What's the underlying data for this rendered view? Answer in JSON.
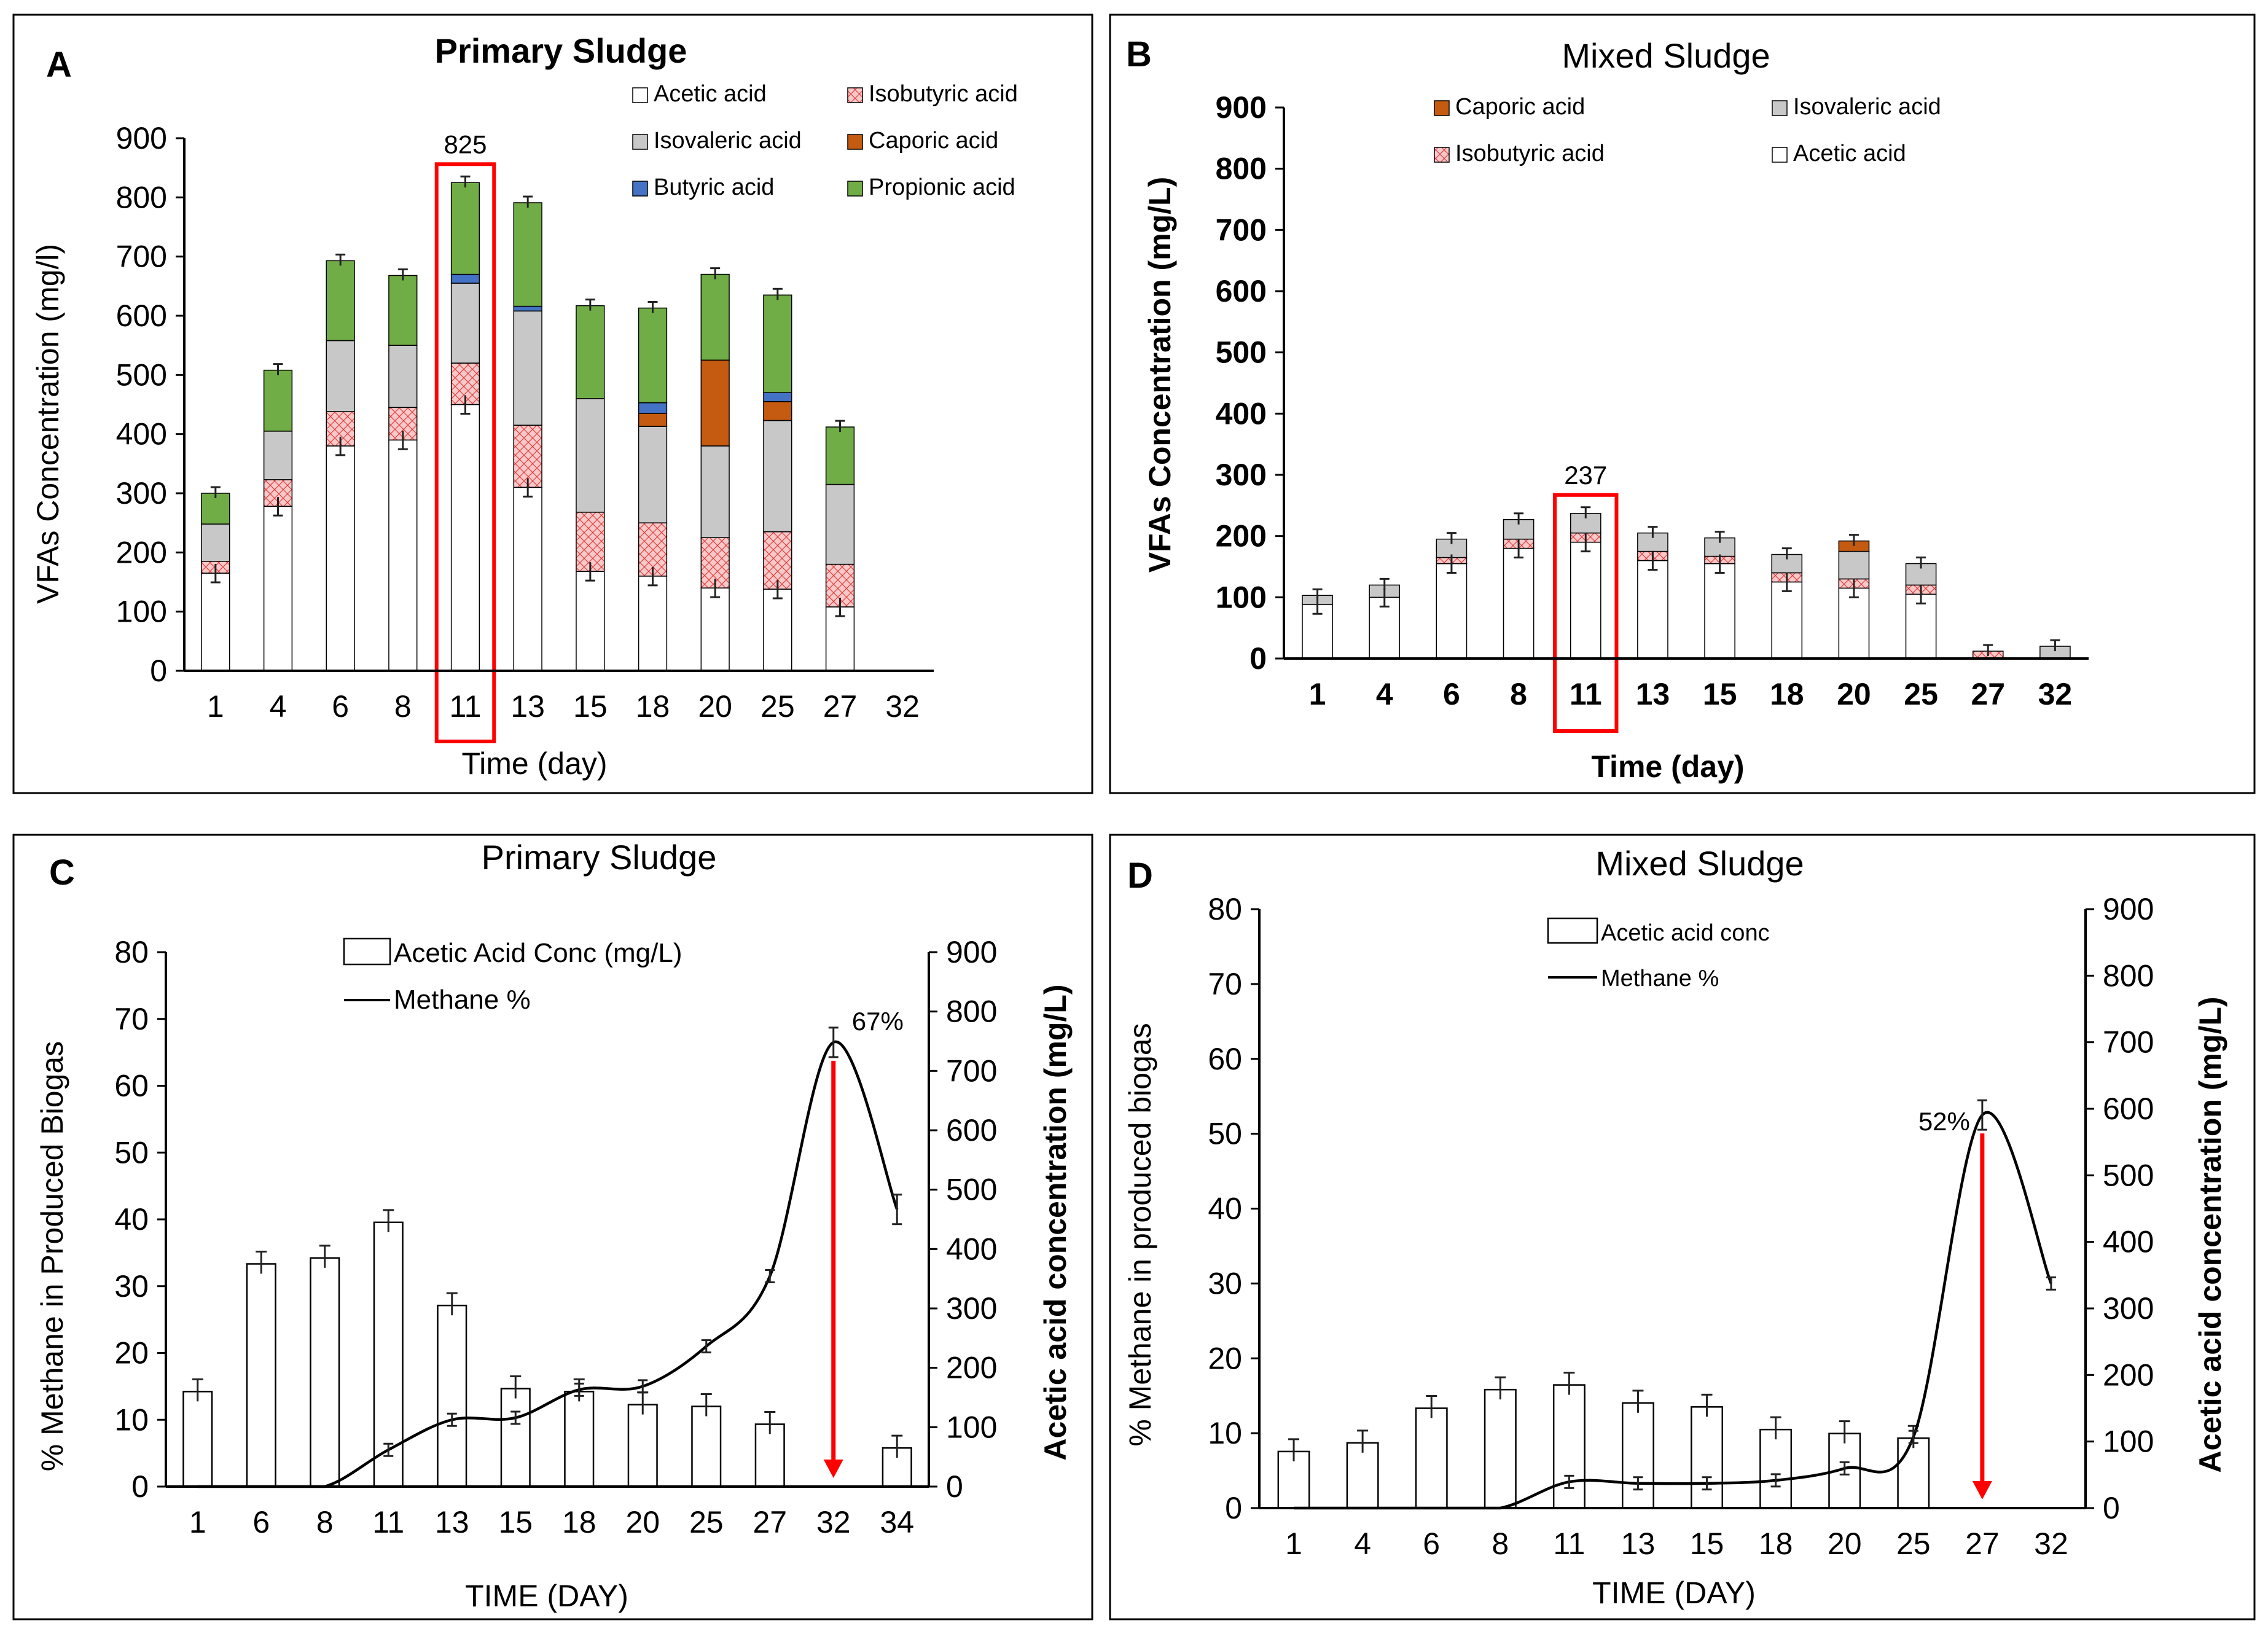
{
  "colors": {
    "acetic": "#ffffff",
    "isobutyric": "#f9c9c9",
    "isovaleric": "#c8c8c8",
    "caporic": "#c55a11",
    "butyric": "#4472c4",
    "propionic": "#70ad47",
    "highlight": "#ff0000",
    "line": "#000000"
  },
  "chart_data": [
    {
      "panel": "A",
      "type": "bar",
      "stacked": true,
      "title": "Primary Sludge",
      "xlabel": "Time (day)",
      "ylabel": "VFAs Concentration (mg/l)",
      "ylim": [
        0,
        900
      ],
      "yticks": [
        "0",
        "100",
        "200",
        "300",
        "400",
        "500",
        "600",
        "700",
        "800",
        "900"
      ],
      "categories": [
        "1",
        "4",
        "6",
        "8",
        "11",
        "13",
        "15",
        "18",
        "20",
        "25",
        "27",
        "32"
      ],
      "series": [
        {
          "name": "Acetic acid",
          "key": "acetic",
          "values": [
            165,
            278,
            380,
            390,
            450,
            310,
            168,
            160,
            140,
            138,
            108,
            0
          ]
        },
        {
          "name": "Isobutyric acid",
          "key": "isobutyric",
          "values": [
            20,
            45,
            58,
            55,
            70,
            105,
            100,
            90,
            85,
            97,
            72,
            0
          ]
        },
        {
          "name": "Isovaleric acid",
          "key": "isovaleric",
          "values": [
            63,
            82,
            120,
            105,
            135,
            193,
            192,
            163,
            155,
            188,
            135,
            0
          ]
        },
        {
          "name": "Caporic acid",
          "key": "caporic",
          "values": [
            0,
            0,
            0,
            0,
            0,
            0,
            0,
            22,
            145,
            32,
            0,
            0
          ]
        },
        {
          "name": "Butyric acid",
          "key": "butyric",
          "values": [
            0,
            0,
            0,
            0,
            15,
            8,
            0,
            18,
            0,
            15,
            0,
            0
          ]
        },
        {
          "name": "Propionic acid",
          "key": "propionic",
          "values": [
            52,
            103,
            135,
            118,
            155,
            175,
            157,
            160,
            145,
            165,
            97,
            0
          ]
        }
      ],
      "legend": [
        {
          "name": "Acetic acid",
          "key": "acetic",
          "pos": "left"
        },
        {
          "name": "Isobutyric acid",
          "key": "isobutyric",
          "pos": "right"
        },
        {
          "name": "Isovaleric acid",
          "key": "isovaleric",
          "pos": "left"
        },
        {
          "name": "Caporic acid",
          "key": "caporic",
          "pos": "right"
        },
        {
          "name": "Butyric acid",
          "key": "butyric",
          "pos": "left"
        },
        {
          "name": "Propionic acid",
          "key": "propionic",
          "pos": "right"
        }
      ],
      "highlight": {
        "category": "11",
        "label": "825"
      }
    },
    {
      "panel": "B",
      "type": "bar",
      "stacked": true,
      "title": "Mixed Sludge",
      "xlabel": "Time (day)",
      "ylabel": "VFAs Concentration (mg/L)",
      "ylim": [
        0,
        900
      ],
      "yticks": [
        "0",
        "100",
        "200",
        "300",
        "400",
        "500",
        "600",
        "700",
        "800",
        "900"
      ],
      "categories": [
        "1",
        "4",
        "6",
        "8",
        "11",
        "13",
        "15",
        "18",
        "20",
        "25",
        "27",
        "32"
      ],
      "series": [
        {
          "name": "Acetic acid",
          "key": "acetic",
          "values": [
            88,
            100,
            155,
            180,
            190,
            160,
            155,
            125,
            115,
            105,
            0,
            0
          ]
        },
        {
          "name": "Isobutyric acid",
          "key": "isobutyric",
          "values": [
            0,
            0,
            10,
            15,
            15,
            15,
            12,
            15,
            15,
            15,
            12,
            0
          ]
        },
        {
          "name": "Isovaleric acid",
          "key": "isovaleric",
          "values": [
            15,
            20,
            30,
            32,
            32,
            30,
            30,
            30,
            45,
            35,
            0,
            20
          ]
        },
        {
          "name": "Caporic acid",
          "key": "caporic",
          "values": [
            0,
            0,
            0,
            0,
            0,
            0,
            0,
            0,
            17,
            0,
            0,
            0
          ]
        }
      ],
      "legend": [
        {
          "name": "Caporic acid",
          "key": "caporic",
          "pos": "left"
        },
        {
          "name": "Isovaleric acid",
          "key": "isovaleric",
          "pos": "right"
        },
        {
          "name": "Isobutyric acid",
          "key": "isobutyric",
          "pos": "left"
        },
        {
          "name": "Acetic acid",
          "key": "acetic",
          "pos": "right"
        }
      ],
      "highlight": {
        "category": "11",
        "label": "237"
      }
    },
    {
      "panel": "C",
      "type": "bar+line",
      "title": "Primary Sludge",
      "xlabel": "TIME (DAY)",
      "ylabel_left": "% Methane in Produced Biogas",
      "ylabel_right": "Acetic acid  concentration (mg/L)",
      "ylim_left": [
        0,
        80
      ],
      "ylim_right": [
        0,
        900
      ],
      "yticks_left": [
        "0",
        "10",
        "20",
        "30",
        "40",
        "50",
        "60",
        "70",
        "80"
      ],
      "yticks_right": [
        "0",
        "100",
        "200",
        "300",
        "400",
        "500",
        "600",
        "700",
        "800",
        "900"
      ],
      "categories": [
        "1",
        "6",
        "8",
        "11",
        "13",
        "15",
        "18",
        "20",
        "25",
        "27",
        "32",
        "34"
      ],
      "bars": {
        "name": "Acetic Acid Conc (mg/L)",
        "values": [
          160,
          375,
          385,
          445,
          305,
          165,
          160,
          138,
          135,
          105,
          0,
          65
        ]
      },
      "line": {
        "name": "Methane %",
        "values": [
          0,
          0,
          0,
          5.5,
          10,
          10.3,
          14.5,
          15,
          21,
          31.5,
          66.5,
          41.5
        ]
      },
      "peak_label": "67%",
      "peak_index": 10
    },
    {
      "panel": "D",
      "type": "bar+line",
      "title": "Mixed Sludge",
      "xlabel": "TIME (DAY)",
      "ylabel_left": "% Methane in produced biogas",
      "ylabel_right": "Acetic acid  concentration (mg/L)",
      "ylim_left": [
        0,
        80
      ],
      "ylim_right": [
        0,
        900
      ],
      "yticks_left": [
        "0",
        "10",
        "20",
        "30",
        "40",
        "50",
        "60",
        "70",
        "80"
      ],
      "yticks_right": [
        "0",
        "100",
        "200",
        "300",
        "400",
        "500",
        "600",
        "700",
        "800",
        "900"
      ],
      "categories": [
        "1",
        "4",
        "6",
        "8",
        "11",
        "13",
        "15",
        "18",
        "20",
        "25",
        "27",
        "32"
      ],
      "bars": {
        "name": "Acetic acid conc",
        "values": [
          85,
          98,
          150,
          178,
          185,
          158,
          152,
          118,
          112,
          105,
          0,
          0
        ]
      },
      "line": {
        "name": "Methane %",
        "values": [
          0,
          0,
          0,
          0,
          3.5,
          3.3,
          3.3,
          3.7,
          5.3,
          9.5,
          52.5,
          30
        ]
      },
      "peak_label": "52%",
      "peak_index": 10
    }
  ]
}
